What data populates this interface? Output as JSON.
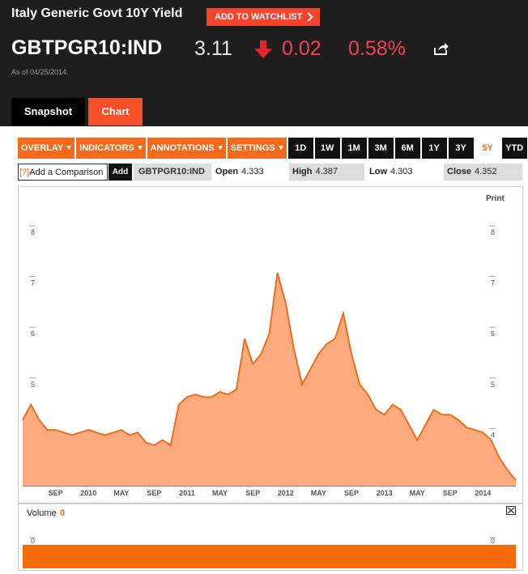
{
  "header": {
    "title": "Italy Generic Govt 10Y Yield",
    "watchlist_button": "ADD TO WATCHLIST",
    "ticker": "GBTPGR10:IND",
    "price": 3.11,
    "change": 0.02,
    "change_percent": "0.58%",
    "as_of": "As of 04/25/2014.",
    "tabs": [
      "Snapshot",
      "Chart"
    ]
  },
  "toolbar": {
    "menus": [
      "OVERLAY",
      "INDICATORS",
      "ANNOTATIONS",
      "SETTINGS"
    ],
    "ranges": [
      "1D",
      "1W",
      "1M",
      "3M",
      "6M",
      "1Y",
      "3Y",
      "5Y",
      "YTD"
    ],
    "selected_range": "5Y",
    "print": "Print"
  },
  "quote_bar": {
    "help": "[?]",
    "compare_placeholder": "Add a Comparison",
    "add_button": "Add",
    "symbol": "GBTPGR10:IND",
    "stats": [
      {
        "label": "Open",
        "value": 4.333
      },
      {
        "label": "High",
        "value": 4.387
      },
      {
        "label": "Low",
        "value": 4.303
      },
      {
        "label": "Close",
        "value": 4.352
      }
    ]
  },
  "chart_data": {
    "type": "area",
    "color": "#f26b1d",
    "fill": "#fbab7d",
    "categories": [
      null,
      null,
      null,
      null,
      "SEP",
      null,
      null,
      null,
      "2010",
      null,
      null,
      null,
      "MAY",
      null,
      null,
      null,
      "SEP",
      null,
      null,
      null,
      "2011",
      null,
      null,
      null,
      "MAY",
      null,
      null,
      null,
      "SEP",
      null,
      null,
      null,
      "2012",
      null,
      null,
      null,
      "MAY",
      null,
      null,
      null,
      "SEP",
      null,
      null,
      null,
      "2013",
      null,
      null,
      null,
      "MAY",
      null,
      null,
      null,
      "SEP",
      null,
      null,
      null,
      "2014",
      null,
      null,
      null,
      null
    ],
    "values": [
      4.3,
      4.6,
      4.3,
      4.1,
      4.1,
      4.05,
      4.0,
      4.05,
      4.1,
      4.05,
      4.0,
      4.05,
      4.1,
      4.0,
      4.05,
      3.85,
      3.8,
      3.9,
      3.8,
      4.6,
      4.75,
      4.8,
      4.75,
      4.75,
      4.85,
      4.8,
      4.9,
      5.9,
      5.4,
      5.6,
      6.0,
      7.2,
      6.6,
      5.7,
      5.0,
      5.3,
      5.6,
      5.8,
      5.9,
      6.4,
      5.6,
      5.0,
      4.8,
      4.5,
      4.4,
      4.6,
      4.5,
      4.2,
      3.9,
      4.2,
      4.5,
      4.4,
      4.4,
      4.3,
      4.15,
      4.1,
      4.05,
      3.9,
      3.55,
      3.3,
      3.11
    ],
    "ylim": [
      3,
      8.75
    ],
    "yticks": [
      4,
      5,
      6,
      7,
      8
    ]
  },
  "volume": {
    "label": "Volume",
    "value": 0,
    "yticks": [
      0
    ]
  }
}
